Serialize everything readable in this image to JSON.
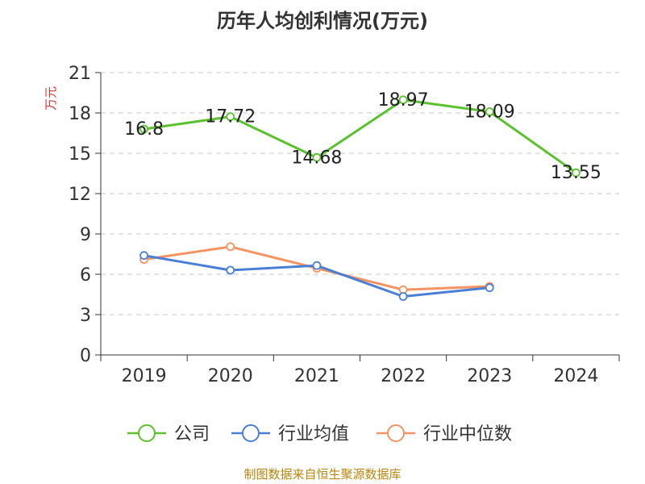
{
  "chart_data": {
    "type": "line",
    "title": "历年人均创利情况(万元)",
    "ylabel": "万元",
    "xlabel": "",
    "categories": [
      "2019",
      "2020",
      "2021",
      "2022",
      "2023",
      "2024"
    ],
    "yticks": [
      "0",
      "3",
      "6",
      "9",
      "12",
      "15",
      "18",
      "21"
    ],
    "ylim": [
      0,
      21
    ],
    "grid": true,
    "legend_position": "bottom",
    "series": [
      {
        "name": "公司",
        "color": "#5bc12f",
        "values": [
          16.8,
          17.72,
          14.68,
          18.97,
          18.09,
          13.55
        ],
        "labels": [
          "16.8",
          "17.72",
          "14.68",
          "18.97",
          "18.09",
          "13.55"
        ]
      },
      {
        "name": "行业均值",
        "color": "#4a7fd6",
        "values": [
          7.4,
          6.3,
          6.65,
          4.35,
          5.0,
          null
        ]
      },
      {
        "name": "行业中位数",
        "color": "#f59362",
        "values": [
          7.1,
          8.05,
          6.45,
          4.85,
          5.1,
          null
        ]
      }
    ]
  },
  "source_text": "制图数据来自恒生聚源数据库"
}
